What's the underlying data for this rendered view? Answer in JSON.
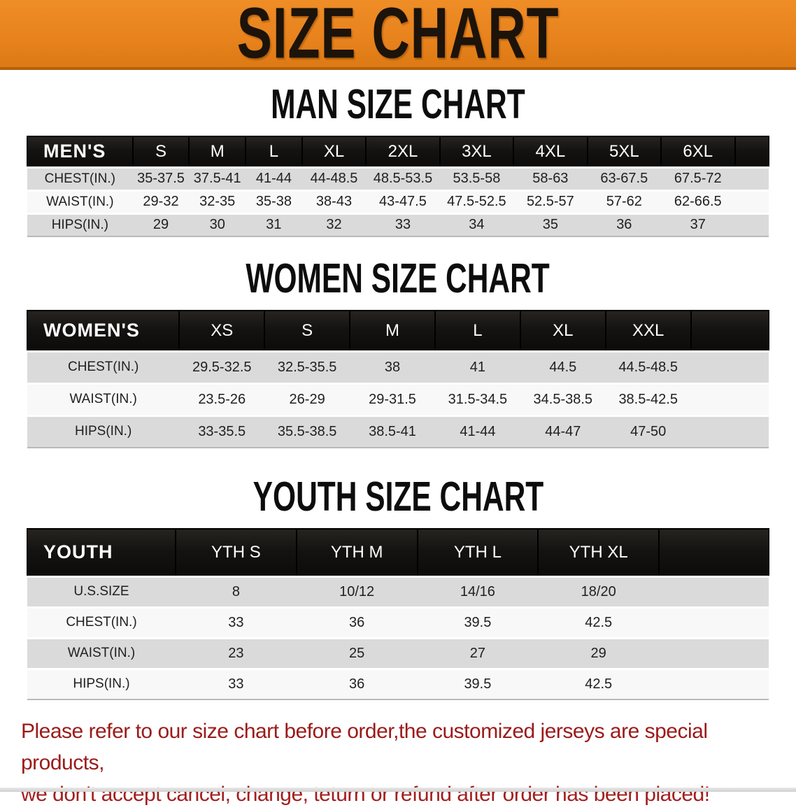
{
  "banner": {
    "title": "SIZE CHART",
    "bg_color": "#E8831E",
    "text_color": "#1C130A"
  },
  "sections": [
    {
      "heading": "MAN SIZE CHART",
      "table": {
        "corner_label": "MEN'S",
        "columns": [
          "S",
          "M",
          "L",
          "XL",
          "2XL",
          "3XL",
          "4XL",
          "5XL",
          "6XL"
        ],
        "rows": [
          {
            "label": "CHEST(IN.)",
            "values": [
              "35-37.5",
              "37.5-41",
              "41-44",
              "44-48.5",
              "48.5-53.5",
              "53.5-58",
              "58-63",
              "63-67.5",
              "67.5-72"
            ]
          },
          {
            "label": "WAIST(IN.)",
            "values": [
              "29-32",
              "32-35",
              "35-38",
              "38-43",
              "43-47.5",
              "47.5-52.5",
              "52.5-57",
              "57-62",
              "62-66.5"
            ]
          },
          {
            "label": "HIPS(IN.)",
            "values": [
              "29",
              "30",
              "31",
              "32",
              "33",
              "34",
              "35",
              "36",
              "37"
            ]
          }
        ]
      }
    },
    {
      "heading": "WOMEN SIZE CHART",
      "table": {
        "corner_label": "WOMEN'S",
        "columns": [
          "XS",
          "S",
          "M",
          "L",
          "XL",
          "XXL"
        ],
        "rows": [
          {
            "label": "CHEST(IN.)",
            "values": [
              "29.5-32.5",
              "32.5-35.5",
              "38",
              "41",
              "44.5",
              "44.5-48.5"
            ]
          },
          {
            "label": "WAIST(IN.)",
            "values": [
              "23.5-26",
              "26-29",
              "29-31.5",
              "31.5-34.5",
              "34.5-38.5",
              "38.5-42.5"
            ]
          },
          {
            "label": "HIPS(IN.)",
            "values": [
              "33-35.5",
              "35.5-38.5",
              "38.5-41",
              "41-44",
              "44-47",
              "47-50"
            ]
          }
        ]
      }
    },
    {
      "heading": "YOUTH SIZE CHART",
      "table": {
        "corner_label": "YOUTH",
        "columns": [
          "YTH S",
          "YTH M",
          "YTH L",
          "YTH XL"
        ],
        "rows": [
          {
            "label": "U.S.SIZE",
            "values": [
              "8",
              "10/12",
              "14/16",
              "18/20"
            ]
          },
          {
            "label": "CHEST(IN.)",
            "values": [
              "33",
              "36",
              "39.5",
              "42.5"
            ]
          },
          {
            "label": "WAIST(IN.)",
            "values": [
              "23",
              "25",
              "27",
              "29"
            ]
          },
          {
            "label": "HIPS(IN.)",
            "values": [
              "33",
              "36",
              "39.5",
              "42.5"
            ]
          }
        ]
      }
    }
  ],
  "footer": {
    "line1": "Please refer to our size chart before order,the customized jerseys are special products,",
    "line2": "we don't accept cancel, change, teturn or refund after order has been placed!",
    "text_color": "#9C1A1A"
  }
}
